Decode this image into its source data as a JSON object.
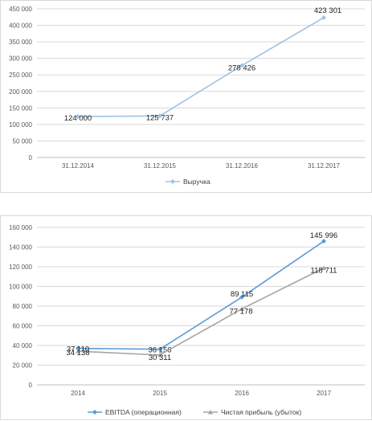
{
  "chart_data": [
    {
      "type": "line",
      "x": [
        "31.12.2014",
        "31.12.2015",
        "31.12.2016",
        "31.12.2017"
      ],
      "ylim": [
        0,
        450000
      ],
      "yticks": [
        "0",
        "50 000",
        "100 000",
        "150 000",
        "200 000",
        "250 000",
        "300 000",
        "350 000",
        "400 000",
        "450 000"
      ],
      "grid": true,
      "legend_position": "bottom",
      "series": [
        {
          "name": "Выручка",
          "color": "#9dc3e6",
          "values": [
            124000,
            125737,
            278426,
            423301
          ],
          "labels": [
            "124 000",
            "125 737",
            "278 426",
            "423 301"
          ]
        }
      ]
    },
    {
      "type": "line",
      "x": [
        "2014",
        "2015",
        "2016",
        "2017"
      ],
      "ylim": [
        0,
        160000
      ],
      "yticks": [
        "0",
        "20 000",
        "40 000",
        "60 000",
        "80 000",
        "100 000",
        "120 000",
        "140 000",
        "160 000"
      ],
      "grid": true,
      "legend_position": "bottom",
      "series": [
        {
          "name": "EBITDA (операционная)",
          "color": "#5b9bd5",
          "values": [
            37110,
            36156,
            89115,
            145996
          ],
          "labels": [
            "37 110",
            "36 156",
            "89 115",
            "145 996"
          ]
        },
        {
          "name": "Чистая прибыль (убыток)",
          "color": "#a5a5a5",
          "values": [
            34138,
            30311,
            77178,
            118711
          ],
          "labels": [
            "34 138",
            "30 311",
            "77 178",
            "118 711"
          ]
        }
      ]
    }
  ]
}
